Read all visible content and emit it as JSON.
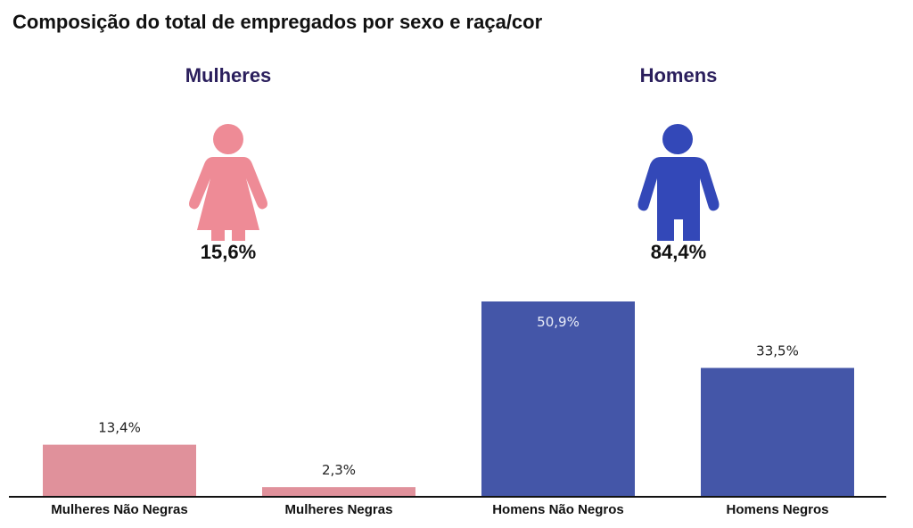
{
  "title": "Composição do total de empregados por sexo e raça/cor",
  "summary": {
    "women": {
      "label": "Mulheres",
      "value_label": "15,6%",
      "value": 15.6,
      "color": "#ee8b96",
      "label_color": "#2a1e5c"
    },
    "men": {
      "label": "Homens",
      "value_label": "84,4%",
      "value": 84.4,
      "color": "#3348b8",
      "label_color": "#2a1e5c"
    }
  },
  "chart_data": {
    "type": "bar",
    "categories": [
      "Mulheres Não Negras",
      "Mulheres Negras",
      "Homens Não Negros",
      "Homens Negros"
    ],
    "values": [
      13.4,
      2.3,
      50.9,
      33.5
    ],
    "data_labels": [
      "13,4%",
      "2,3%",
      "50,9%",
      "33,5%"
    ],
    "colors": [
      "#e0919b",
      "#e0919b",
      "#4456a8",
      "#4456a8"
    ],
    "title": "",
    "xlabel": "",
    "ylabel": "",
    "ylim": [
      0,
      50.9
    ],
    "grid": false,
    "legend": "none"
  }
}
